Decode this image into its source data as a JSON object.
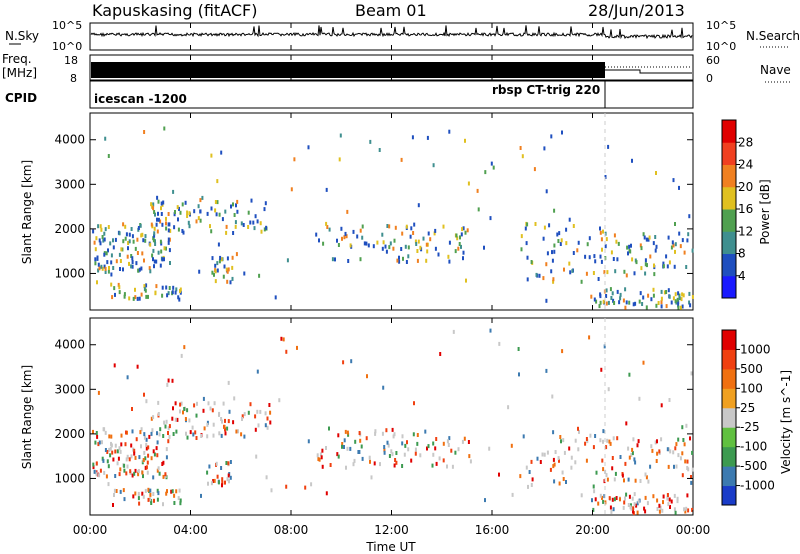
{
  "header": {
    "station": "Kapuskasing (fitACF)",
    "beam": "Beam 01",
    "date": "28/Jun/2013"
  },
  "noise_panel": {
    "left_label": "N.Sky",
    "left_ticks": [
      "10^5",
      "10^0"
    ],
    "right_ticks": [
      "10^5",
      "10^0"
    ],
    "right_label": "N.Search"
  },
  "freq_panel": {
    "left_label_1": "Freq.",
    "left_label_2": "[MHz]",
    "left_ticks": [
      "18",
      "8"
    ],
    "right_ticks": [
      "60",
      "0"
    ],
    "right_label": "Nave"
  },
  "cpid_panel": {
    "label": "CPID",
    "program_1": "icescan -1200",
    "program_2": "rbsp CT-trig 220"
  },
  "chart_data": [
    {
      "type": "heatmap",
      "name": "power",
      "ylabel": "Slant Range [km]",
      "xlabel": "",
      "y_ticks": [
        "1000",
        "2000",
        "3000",
        "4000"
      ],
      "ylim": [
        180,
        4600
      ],
      "colorbar_label": "Power [dB]",
      "colorbar_ticks": [
        "4",
        "8",
        "12",
        "16",
        "20",
        "24",
        "28"
      ],
      "colorbar_colors": [
        "#1a1aff",
        "#1f4fbf",
        "#3f8f8f",
        "#50a050",
        "#e0c020",
        "#f08020",
        "#f04020",
        "#e00000"
      ]
    },
    {
      "type": "heatmap",
      "name": "velocity",
      "ylabel": "Slant Range [km]",
      "xlabel": "Time UT",
      "y_ticks": [
        "1000",
        "2000",
        "3000",
        "4000"
      ],
      "ylim": [
        180,
        4600
      ],
      "colorbar_label": "Velocity [m s^-1]",
      "colorbar_ticks": [
        "1000",
        "500",
        "100",
        "25",
        "-25",
        "-100",
        "-500",
        "-1000"
      ],
      "colorbar_colors": [
        "#1a3cc8",
        "#3c7ab0",
        "#3c9a50",
        "#60c040",
        "#c8c8c8",
        "#f0a020",
        "#f07010",
        "#f04010",
        "#e00000"
      ]
    }
  ],
  "x_axis": {
    "label": "Time UT",
    "ticks": [
      "00:00",
      "04:00",
      "08:00",
      "12:00",
      "16:00",
      "20:00",
      "00:00"
    ]
  }
}
